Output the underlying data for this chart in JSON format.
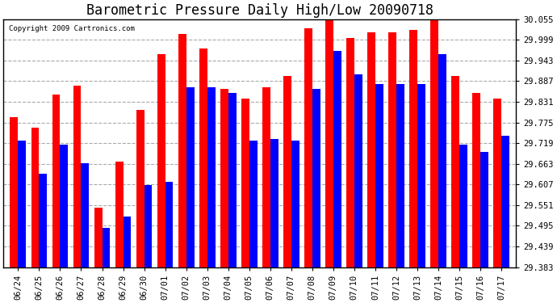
{
  "title": "Barometric Pressure Daily High/Low 20090718",
  "copyright": "Copyright 2009 Cartronics.com",
  "dates": [
    "06/24",
    "06/25",
    "06/26",
    "06/27",
    "06/28",
    "06/29",
    "06/30",
    "07/01",
    "07/02",
    "07/03",
    "07/04",
    "07/05",
    "07/06",
    "07/07",
    "07/08",
    "07/09",
    "07/10",
    "07/11",
    "07/12",
    "07/13",
    "07/14",
    "07/15",
    "07/16",
    "07/17"
  ],
  "highs": [
    29.79,
    29.76,
    29.85,
    29.875,
    29.545,
    29.67,
    29.81,
    29.96,
    30.015,
    29.975,
    29.865,
    29.84,
    29.87,
    29.9,
    30.03,
    30.06,
    30.005,
    30.02,
    30.02,
    30.025,
    30.065,
    29.9,
    29.855,
    29.84
  ],
  "lows": [
    29.725,
    29.635,
    29.715,
    29.665,
    29.49,
    29.52,
    29.605,
    29.615,
    29.87,
    29.87,
    29.855,
    29.725,
    29.73,
    29.725,
    29.865,
    29.97,
    29.905,
    29.88,
    29.88,
    29.88,
    29.96,
    29.715,
    29.695,
    29.74
  ],
  "high_color": "#FF0000",
  "low_color": "#0000FF",
  "background_color": "#FFFFFF",
  "grid_color": "#AAAAAA",
  "ymin": 29.383,
  "ymax": 30.055,
  "yticks": [
    29.383,
    29.439,
    29.495,
    29.551,
    29.607,
    29.663,
    29.719,
    29.775,
    29.831,
    29.887,
    29.943,
    29.999,
    30.055
  ],
  "title_fontsize": 12,
  "tick_fontsize": 7.5,
  "copyright_fontsize": 6.5
}
